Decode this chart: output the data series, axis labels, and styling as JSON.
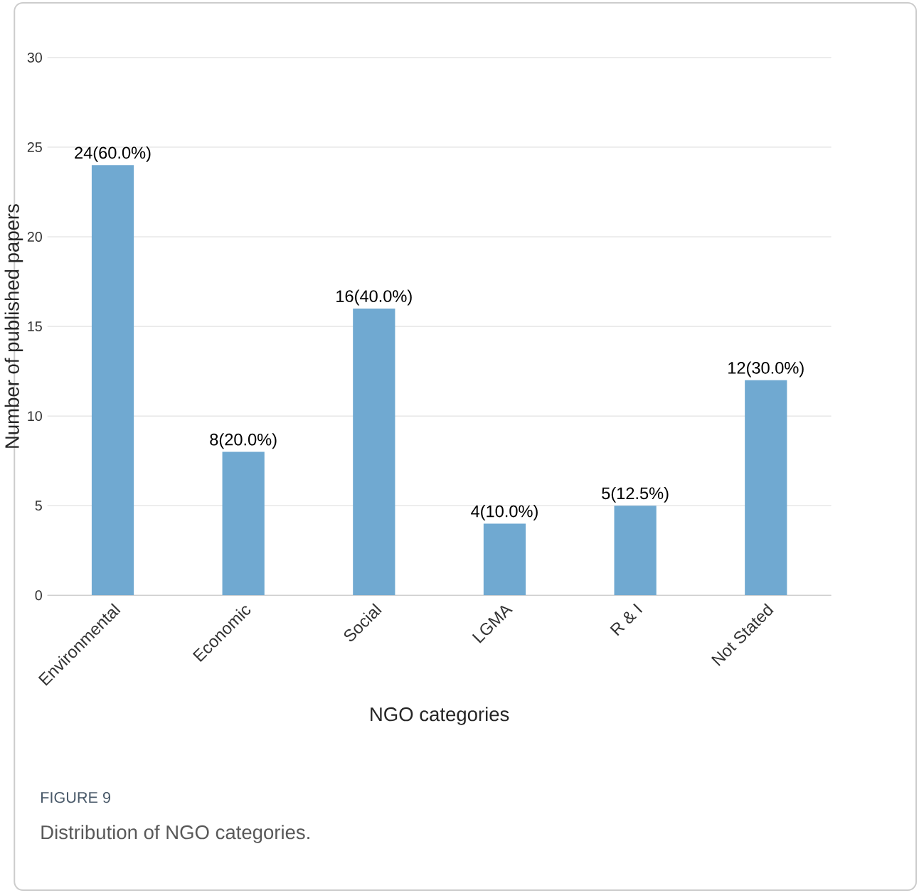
{
  "chart_data": {
    "type": "bar",
    "categories": [
      "Environmental",
      "Economic",
      "Social",
      "LGMA",
      "R & I",
      "Not Stated"
    ],
    "values": [
      24,
      8,
      16,
      4,
      5,
      12
    ],
    "value_labels": [
      "24(60.0%)",
      "8(20.0%)",
      "16(40.0%)",
      "4(10.0%)",
      "5(12.5%)",
      "12(30.0%)"
    ],
    "color": "#70a9d1",
    "xlabel": "NGO categories",
    "ylabel": "Number of published papers",
    "ylim": [
      0,
      30
    ],
    "yticks": [
      0,
      5,
      10,
      15,
      20,
      25,
      30
    ],
    "grid": "y",
    "annotations": [
      "FIGURE 9",
      "Distribution of NGO categories."
    ]
  }
}
